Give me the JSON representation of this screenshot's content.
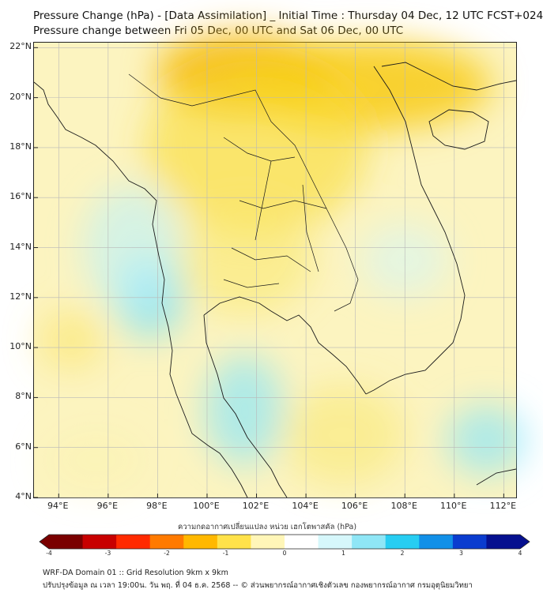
{
  "header": {
    "title_line1": "Pressure Change (hPa) - [Data Assimilation] _ Initial Time : Thursday 04 Dec, 12 UTC FCST+024",
    "title_line2": "Pressure change between Fri 05 Dec, 00 UTC and Sat 06 Dec, 00 UTC"
  },
  "map": {
    "lon_range": [
      93,
      112.5
    ],
    "lat_range": [
      4,
      22.2
    ],
    "lat_ticks": [
      {
        "value": 22,
        "label": "22°N"
      },
      {
        "value": 20,
        "label": "20°N"
      },
      {
        "value": 18,
        "label": "18°N"
      },
      {
        "value": 16,
        "label": "16°N"
      },
      {
        "value": 14,
        "label": "14°N"
      },
      {
        "value": 12,
        "label": "12°N"
      },
      {
        "value": 10,
        "label": "10°N"
      },
      {
        "value": 8,
        "label": "8°N"
      },
      {
        "value": 6,
        "label": "6°N"
      },
      {
        "value": 4,
        "label": "4°N"
      }
    ],
    "lon_ticks": [
      {
        "value": 94,
        "label": "94°E"
      },
      {
        "value": 96,
        "label": "96°E"
      },
      {
        "value": 98,
        "label": "98°E"
      },
      {
        "value": 100,
        "label": "100°E"
      },
      {
        "value": 102,
        "label": "102°E"
      },
      {
        "value": 104,
        "label": "104°E"
      },
      {
        "value": 106,
        "label": "106°E"
      },
      {
        "value": 108,
        "label": "108°E"
      },
      {
        "value": 110,
        "label": "110°E"
      },
      {
        "value": 112,
        "label": "112°E"
      }
    ],
    "gridlines": true,
    "field_blobs": [
      {
        "lon": 101.5,
        "lat": 21.0,
        "rx": 3.5,
        "ry": 1.6,
        "color": "#f5b400",
        "opacity": 0.85
      },
      {
        "lon": 106.5,
        "lat": 20.5,
        "rx": 5.0,
        "ry": 1.8,
        "color": "#f7c600",
        "opacity": 0.75
      },
      {
        "lon": 102.0,
        "lat": 18.0,
        "rx": 4.5,
        "ry": 3.5,
        "color": "#f9da30",
        "opacity": 0.6
      },
      {
        "lon": 101.5,
        "lat": 13.5,
        "rx": 2.8,
        "ry": 2.2,
        "color": "#fae86a",
        "opacity": 0.55
      },
      {
        "lon": 105.5,
        "lat": 6.5,
        "rx": 2.5,
        "ry": 2.0,
        "color": "#fae86a",
        "opacity": 0.5
      },
      {
        "lon": 94.5,
        "lat": 10.3,
        "rx": 1.3,
        "ry": 1.2,
        "color": "#fbe460",
        "opacity": 0.55
      },
      {
        "lon": 97.7,
        "lat": 12.0,
        "rx": 1.4,
        "ry": 1.6,
        "color": "#7fe0f5",
        "opacity": 0.75
      },
      {
        "lon": 101.5,
        "lat": 7.5,
        "rx": 1.6,
        "ry": 2.2,
        "color": "#8ee6f7",
        "opacity": 0.7
      },
      {
        "lon": 97.0,
        "lat": 14.0,
        "rx": 2.0,
        "ry": 2.5,
        "color": "#bdf2fb",
        "opacity": 0.6
      },
      {
        "lon": 111.3,
        "lat": 6.3,
        "rx": 1.6,
        "ry": 1.4,
        "color": "#8ee6f7",
        "opacity": 0.7
      },
      {
        "lon": 108.0,
        "lat": 13.5,
        "rx": 1.8,
        "ry": 1.5,
        "color": "#d2f6fb",
        "opacity": 0.55
      },
      {
        "lon": 95.5,
        "lat": 5.5,
        "rx": 2.0,
        "ry": 1.2,
        "color": "#fbf3b0",
        "opacity": 0.5
      }
    ]
  },
  "colorbar": {
    "title": "ความกดอากาศเปลี่ยนแปลง หน่วย เฮกโตพาสคัล (hPa)",
    "ticks": [
      "-4",
      "-3",
      "-2",
      "-1",
      "0",
      "1",
      "2",
      "3",
      "4"
    ],
    "colors": [
      "#7a0000",
      "#c80000",
      "#ff2a00",
      "#ff7a00",
      "#ffb800",
      "#ffe24a",
      "#fff6b8",
      "#ffffff",
      "#d6f7fb",
      "#8fe6f6",
      "#27cdf2",
      "#1190e8",
      "#0a3ccf",
      "#06108f"
    ]
  },
  "footer": {
    "line1": "WRF-DA Domain 01 :: Grid Resolution 9km x 9km",
    "line2": "ปรับปรุงข้อมูล ณ เวลา 19:00น. วัน พฤ. ที่ 04 ธ.ค. 2568 -- © ส่วนพยากรณ์อากาศเชิงตัวเลข กองพยากรณ์อากาศ กรมอุตุนิยมวิทยา"
  }
}
